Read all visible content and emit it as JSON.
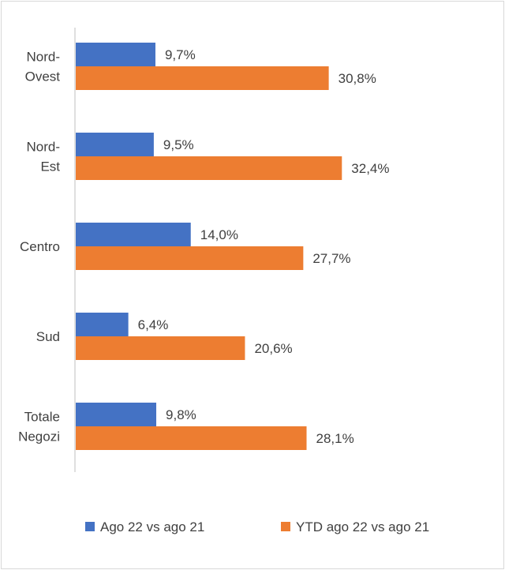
{
  "chart_data": {
    "type": "bar",
    "orientation": "horizontal",
    "categories": [
      [
        "Nord-",
        "Ovest"
      ],
      [
        "Nord-",
        "Est"
      ],
      [
        "Centro"
      ],
      [
        "Sud"
      ],
      [
        "Totale",
        "Negozi"
      ]
    ],
    "series": [
      {
        "name": "Ago 22 vs ago 21",
        "color": "#4472C4",
        "values": [
          9.7,
          9.5,
          14.0,
          6.4,
          9.8
        ],
        "labels": [
          "9,7%",
          "9,5%",
          "14,0%",
          "6,4%",
          "9,8%"
        ]
      },
      {
        "name": "YTD ago 22 vs ago 21",
        "color": "#ED7D31",
        "values": [
          30.8,
          32.4,
          27.7,
          20.6,
          28.1
        ],
        "labels": [
          "30,8%",
          "32,4%",
          "27,7%",
          "20,6%",
          "28,1%"
        ]
      }
    ],
    "xlim": [
      0,
      38
    ],
    "grid": false,
    "legend_position": "bottom"
  }
}
